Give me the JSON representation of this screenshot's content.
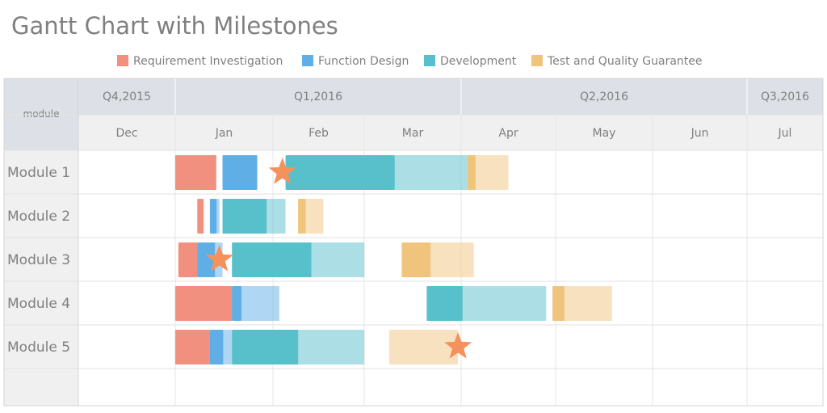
{
  "chart_data": {
    "type": "gantt",
    "title": "Gantt Chart with Milestones",
    "corner_label": "module",
    "legend_position": "top-center",
    "legend": [
      {
        "name": "Requirement Investigation",
        "color": "#f2907f"
      },
      {
        "name": "Function Design",
        "color": "#60aee6"
      },
      {
        "name": "Development",
        "color": "#58c0cb"
      },
      {
        "name": "Test and Quality Guarantee",
        "color": "#f1c47e"
      }
    ],
    "quarters": [
      {
        "label": "Q4,2015",
        "start": "2015-11-01",
        "end": "2016-01-01"
      },
      {
        "label": "Q1,2016",
        "start": "2016-01-01",
        "end": "2016-04-01"
      },
      {
        "label": "Q2,2016",
        "start": "2016-04-01",
        "end": "2016-07-01"
      },
      {
        "label": "Q3,2016",
        "start": "2016-07-01",
        "end": "2016-08-01"
      }
    ],
    "months": [
      {
        "label": "Dec",
        "start": "2015-12-01",
        "end": "2016-01-01"
      },
      {
        "label": "Jan",
        "start": "2016-01-01",
        "end": "2016-02-01"
      },
      {
        "label": "Feb",
        "start": "2016-02-01",
        "end": "2016-03-01"
      },
      {
        "label": "Mar",
        "start": "2016-03-01",
        "end": "2016-04-01"
      },
      {
        "label": "Apr",
        "start": "2016-04-01",
        "end": "2016-05-01"
      },
      {
        "label": "May",
        "start": "2016-05-01",
        "end": "2016-06-01"
      },
      {
        "label": "Jun",
        "start": "2016-06-01",
        "end": "2016-07-01"
      },
      {
        "label": "Jul",
        "start": "2016-07-01",
        "end": "2016-08-01"
      }
    ],
    "modules": [
      {
        "name": "Module 1",
        "tasks": [
          {
            "phase": "Requirement Investigation",
            "start": "2016-01-01",
            "end": "2016-01-14",
            "progress": 1
          },
          {
            "phase": "Function Design",
            "start": "2016-01-16",
            "end": "2016-01-27",
            "progress": 1
          },
          {
            "phase": "Development",
            "start": "2016-02-05",
            "end": "2016-04-03",
            "progress": 0.6
          },
          {
            "phase": "Test and Quality Guarantee",
            "start": "2016-04-03",
            "end": "2016-04-16",
            "progress": 0.2
          }
        ],
        "milestone": "2016-02-04"
      },
      {
        "name": "Module 2",
        "tasks": [
          {
            "phase": "Requirement Investigation",
            "start": "2016-01-08",
            "end": "2016-01-10",
            "progress": 1
          },
          {
            "phase": "Function Design",
            "start": "2016-01-12",
            "end": "2016-01-15",
            "progress": 0.7
          },
          {
            "phase": "Development",
            "start": "2016-01-16",
            "end": "2016-02-05",
            "progress": 0.7
          },
          {
            "phase": "Test and Quality Guarantee",
            "start": "2016-02-09",
            "end": "2016-02-17",
            "progress": 0.3
          }
        ]
      },
      {
        "name": "Module 3",
        "tasks": [
          {
            "phase": "Requirement Investigation",
            "start": "2016-01-02",
            "end": "2016-01-08",
            "progress": 1
          },
          {
            "phase": "Function Design",
            "start": "2016-01-08",
            "end": "2016-01-16",
            "progress": 0.7
          },
          {
            "phase": "Development",
            "start": "2016-01-19",
            "end": "2016-03-01",
            "progress": 0.6
          },
          {
            "phase": "Test and Quality Guarantee",
            "start": "2016-03-13",
            "end": "2016-04-05",
            "progress": 0.4
          }
        ],
        "milestone": "2016-01-15"
      },
      {
        "name": "Module 4",
        "tasks": [
          {
            "phase": "Requirement Investigation",
            "start": "2016-01-01",
            "end": "2016-01-19",
            "progress": 1
          },
          {
            "phase": "Function Design",
            "start": "2016-01-19",
            "end": "2016-02-03",
            "progress": 0.2
          },
          {
            "phase": "Development",
            "start": "2016-03-21",
            "end": "2016-04-28",
            "progress": 0.3
          },
          {
            "phase": "Test and Quality Guarantee",
            "start": "2016-04-30",
            "end": "2016-05-19",
            "progress": 0.2
          }
        ]
      },
      {
        "name": "Module 5",
        "tasks": [
          {
            "phase": "Requirement Investigation",
            "start": "2016-01-01",
            "end": "2016-01-12",
            "progress": 1
          },
          {
            "phase": "Function Design",
            "start": "2016-01-12",
            "end": "2016-01-19",
            "progress": 0.6
          },
          {
            "phase": "Development",
            "start": "2016-01-19",
            "end": "2016-03-01",
            "progress": 0.5
          },
          {
            "phase": "Test and Quality Guarantee",
            "start": "2016-03-09",
            "end": "2016-03-31",
            "progress": 0
          }
        ],
        "milestone": "2016-03-31"
      }
    ]
  }
}
